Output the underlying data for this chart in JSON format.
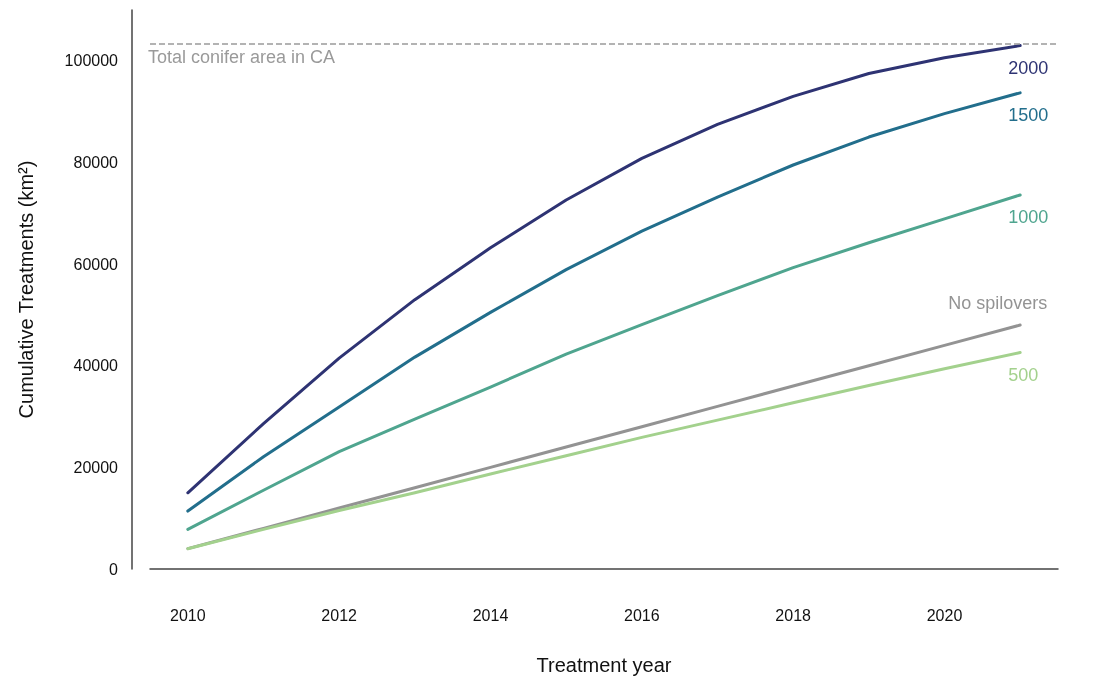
{
  "chart_data": {
    "type": "line",
    "xlabel": "Treatment year",
    "ylabel": "Cumulative Treatments (km²)",
    "x": [
      2010,
      2011,
      2012,
      2013,
      2014,
      2015,
      2016,
      2017,
      2018,
      2019,
      2020,
      2021
    ],
    "xlim": [
      2009.5,
      2021.5
    ],
    "xticks": [
      2010,
      2012,
      2014,
      2016,
      2018,
      2020
    ],
    "ylim": [
      0,
      110000
    ],
    "yticks": [
      0,
      20000,
      40000,
      60000,
      80000,
      100000
    ],
    "grid": false,
    "legend": false,
    "marker": "none",
    "line_style": "solid",
    "series": [
      {
        "name": "2000",
        "color": "#2e3373",
        "values": [
          15000,
          28600,
          41500,
          53000,
          63200,
          72600,
          80800,
          87500,
          93000,
          97500,
          100600,
          103000
        ]
      },
      {
        "name": "1500",
        "color": "#226e8c",
        "values": [
          11400,
          22100,
          31900,
          41700,
          50500,
          58900,
          66500,
          73200,
          79500,
          85000,
          89600,
          93700
        ]
      },
      {
        "name": "1000",
        "color": "#4fa58f",
        "values": [
          7800,
          15500,
          23100,
          29500,
          35800,
          42300,
          48100,
          53800,
          59300,
          64200,
          68900,
          73600
        ]
      },
      {
        "name": "No spilovers",
        "color": "#939393",
        "values": [
          4000,
          8000,
          12000,
          16000,
          20000,
          24000,
          28000,
          32000,
          36000,
          40000,
          44000,
          48000
        ]
      },
      {
        "name": "500",
        "color": "#a3d18d",
        "values": [
          4000,
          7800,
          11500,
          15000,
          18700,
          22300,
          25900,
          29300,
          32700,
          36100,
          39400,
          42600
        ]
      }
    ],
    "ref_lines": [
      {
        "axis": "y",
        "value": 103300,
        "label": "Total conifer area in CA",
        "color": "#9a9a9a",
        "line_style": "dashed"
      }
    ]
  }
}
